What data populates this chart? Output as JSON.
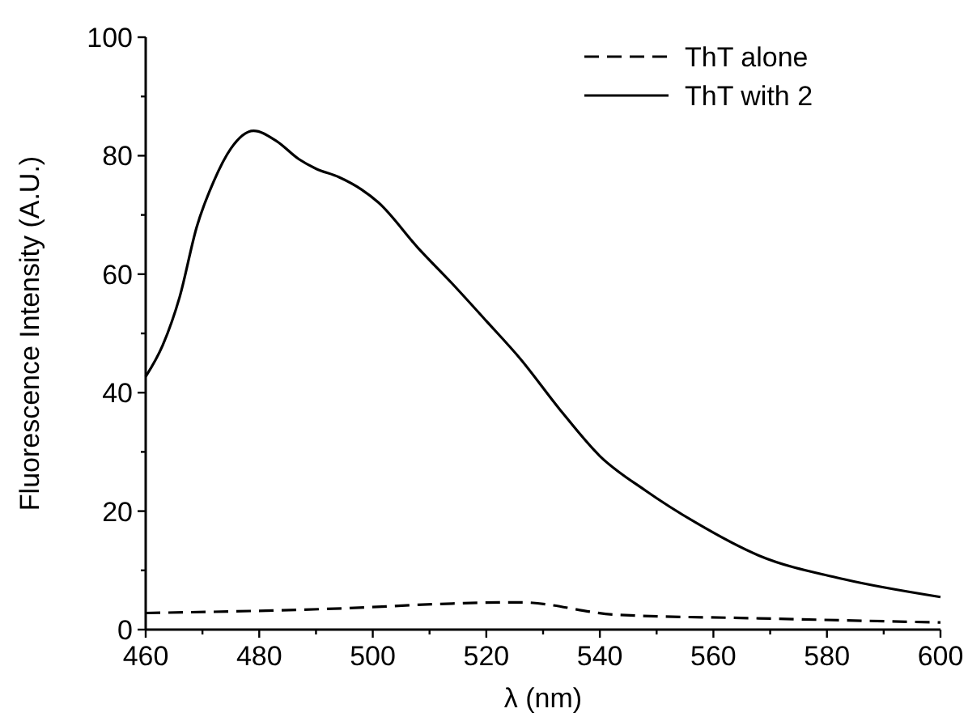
{
  "chart_data": {
    "type": "line",
    "xlabel": "λ (nm)",
    "ylabel": "Fluorescence Intensity (A.U.)",
    "xlim": [
      460,
      600
    ],
    "ylim": [
      0,
      100
    ],
    "xticks": [
      460,
      {
        "value": 470,
        "label": null
      },
      480,
      {
        "value": 490,
        "label": null
      },
      500,
      {
        "value": 510,
        "label": null
      },
      520,
      {
        "value": 530,
        "label": null
      },
      540,
      {
        "value": 550,
        "label": null
      },
      560,
      {
        "value": 570,
        "label": null
      },
      580,
      {
        "value": 590,
        "label": null
      },
      600
    ],
    "yticks": [
      0,
      {
        "value": 10,
        "label": null
      },
      20,
      {
        "value": 30,
        "label": null
      },
      40,
      {
        "value": 50,
        "label": null
      },
      60,
      {
        "value": 70,
        "label": null
      },
      80,
      {
        "value": 90,
        "label": null
      },
      100
    ],
    "grid": false,
    "legend": "top right",
    "marker": "none",
    "series": [
      {
        "name": "ThT alone",
        "color": "#000000",
        "line_style": "dashed",
        "x": [
          460,
          495,
          514,
          524,
          526,
          543,
          568,
          600
        ],
        "values": [
          2.8,
          3.6,
          4.4,
          4.6,
          4.6,
          2.5,
          1.9,
          1.2
        ]
      },
      {
        "name": "ThT with 2",
        "color": "#000000",
        "line_style": "solid",
        "x": [
          460,
          463,
          466,
          469,
          472,
          475,
          479,
          483,
          487,
          490,
          494,
          498,
          501,
          508,
          514,
          520,
          526,
          533,
          540,
          548,
          557,
          568,
          583,
          600
        ],
        "values": [
          42.7,
          48,
          56.2,
          68,
          75.7,
          81.2,
          84.2,
          82.5,
          79.4,
          77.8,
          76.4,
          74.3,
          72.1,
          64.4,
          58.4,
          52.1,
          45.7,
          37.1,
          29.3,
          23.5,
          18,
          12.5,
          8.5,
          5.5
        ]
      }
    ]
  }
}
